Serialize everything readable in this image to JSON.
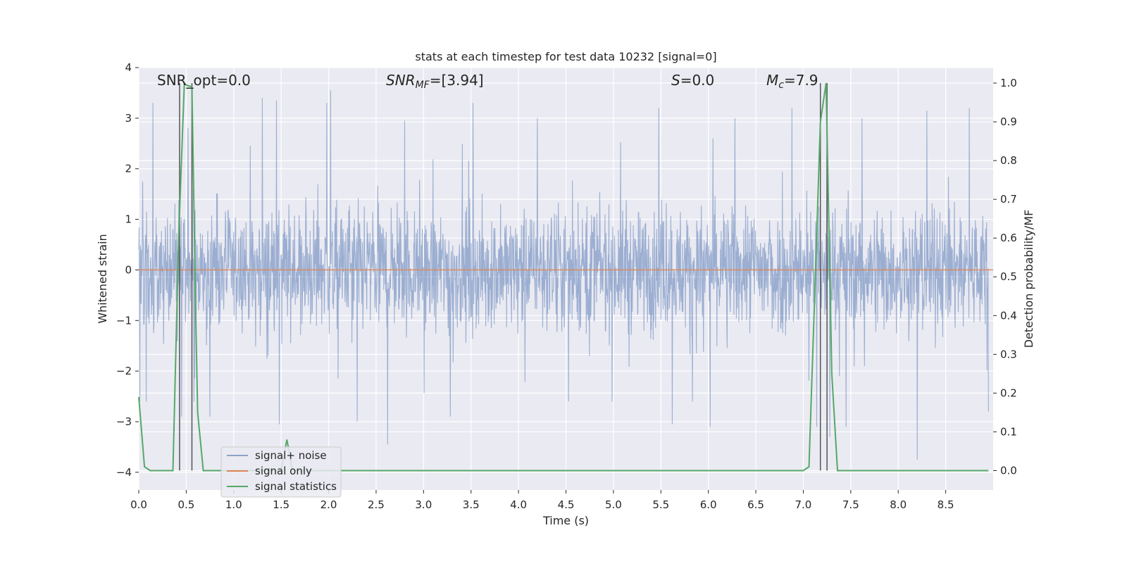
{
  "chart_data": {
    "type": "line",
    "title": "stats at each timestep for test data 10232 [signal=0]",
    "xlabel": "Time (s)",
    "ylabel_left": "Whitened strain",
    "ylabel_right": "Detection probability/MF",
    "xlim": [
      0.0,
      9.0
    ],
    "ylim_left": [
      -4.35,
      4.0
    ],
    "ylim_right": [
      -0.05,
      1.04
    ],
    "x_ticks": [
      "0.0",
      "0.5",
      "1.0",
      "1.5",
      "2.0",
      "2.5",
      "3.0",
      "3.5",
      "4.0",
      "4.5",
      "5.0",
      "5.5",
      "6.0",
      "6.5",
      "7.0",
      "7.5",
      "8.0",
      "8.5"
    ],
    "y_ticks_left": [
      "4",
      "3",
      "2",
      "1",
      "0",
      "−1",
      "−2",
      "−3",
      "−4"
    ],
    "y_ticks_right": [
      "1.0",
      "0.9",
      "0.8",
      "0.7",
      "0.6",
      "0.5",
      "0.4",
      "0.3",
      "0.2",
      "0.1",
      "0.0"
    ],
    "grid": true,
    "legend_position": "lower-left",
    "colors": {
      "background": "#eaeaf2",
      "grid": "#ffffff",
      "noise": "#4c72b0",
      "signal_only": "#dd8452",
      "statistics": "#55a868",
      "marker_lines": "#555555"
    },
    "annotations": {
      "snr_opt": "SNR_opt=0.0",
      "snr_mf_main": "SNR",
      "snr_mf_sub": "MF",
      "snr_mf_value": "=[3.94]",
      "s_main": "S",
      "s_value": "=0.0",
      "mc_main": "M",
      "mc_sub": "c",
      "mc_value": "=7.9"
    },
    "series": [
      {
        "name": "signal+ noise",
        "axis": "left",
        "description_stats": {
          "envelope_low": -1.7,
          "envelope_high": 1.5
        },
        "peaks": [
          [
            0.15,
            3.3
          ],
          [
            0.45,
            3.6
          ],
          [
            0.52,
            2.8
          ],
          [
            1.3,
            3.4
          ],
          [
            1.45,
            3.35
          ],
          [
            1.98,
            3.3
          ],
          [
            2.02,
            3.55
          ],
          [
            2.8,
            2.95
          ],
          [
            3.52,
            3.3
          ],
          [
            4.2,
            3.0
          ],
          [
            5.48,
            3.2
          ],
          [
            5.62,
            3.0
          ],
          [
            6.28,
            3.0
          ],
          [
            6.88,
            3.2
          ],
          [
            7.25,
            3.6
          ],
          [
            7.62,
            3.0
          ],
          [
            8.3,
            3.15
          ],
          [
            8.75,
            3.2
          ],
          [
            0.08,
            -2.6
          ],
          [
            0.45,
            -2.9
          ],
          [
            0.58,
            -2.6
          ],
          [
            0.75,
            -2.9
          ],
          [
            1.48,
            -3.05
          ],
          [
            2.3,
            -3.0
          ],
          [
            2.62,
            -3.45
          ],
          [
            3.28,
            -2.9
          ],
          [
            5.62,
            -3.05
          ],
          [
            6.02,
            -3.1
          ],
          [
            7.14,
            -3.1
          ],
          [
            7.28,
            -3.3
          ],
          [
            7.45,
            -3.1
          ],
          [
            8.2,
            -3.75
          ],
          [
            8.95,
            -2.8
          ]
        ]
      },
      {
        "name": "signal only",
        "axis": "left",
        "x": [
          0.0,
          9.0
        ],
        "y": [
          0.0,
          0.0
        ]
      },
      {
        "name": "signal statistics",
        "axis": "right",
        "x": [
          0.0,
          0.06,
          0.12,
          0.2,
          0.28,
          0.36,
          0.42,
          0.48,
          0.5,
          0.56,
          0.6,
          0.62,
          0.68,
          0.76,
          1.0,
          1.44,
          1.5,
          1.56,
          1.62,
          2.0,
          4.0,
          6.0,
          7.0,
          7.06,
          7.12,
          7.18,
          7.24,
          7.3,
          7.36,
          7.42,
          7.5,
          8.0,
          8.95
        ],
        "y": [
          0.19,
          0.01,
          0.0,
          0.0,
          0.0,
          0.0,
          0.6,
          1.0,
          0.995,
          0.99,
          0.4,
          0.15,
          0.0,
          0.0,
          0.0,
          0.0,
          0.0,
          0.08,
          0.0,
          0.0,
          0.0,
          0.0,
          0.0,
          0.01,
          0.45,
          0.9,
          1.0,
          0.25,
          0.0,
          0.0,
          0.0,
          0.0,
          0.0
        ]
      }
    ],
    "vertical_markers": [
      0.43,
      0.56,
      7.18,
      7.25
    ],
    "legend": [
      {
        "label": "signal+ noise",
        "key": "noise"
      },
      {
        "label": "signal only",
        "key": "signal_only"
      },
      {
        "label": "signal statistics",
        "key": "statistics"
      }
    ]
  }
}
